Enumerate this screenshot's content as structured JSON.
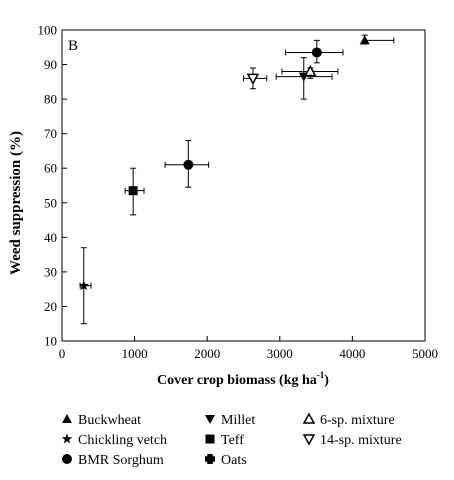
{
  "chart_data": {
    "type": "scatter",
    "panel_label": "B",
    "xlabel": "Cover crop biomass (kg ha",
    "xlabel_sup": "-1",
    "xlabel_end": ")",
    "ylabel": "Weed suppression (%)",
    "xlim": [
      0,
      5000
    ],
    "ylim": [
      10,
      100
    ],
    "xticks": [
      0,
      1000,
      2000,
      3000,
      4000,
      5000
    ],
    "yticks": [
      10,
      20,
      30,
      40,
      50,
      60,
      70,
      80,
      90,
      100
    ],
    "series": [
      {
        "name": "Buckwheat",
        "marker": "triangle-up-filled",
        "points": [
          {
            "x": 4170,
            "y": 97,
            "xerr": [
              4170,
              4570
            ],
            "yerr": [
              96,
              98.5
            ]
          }
        ]
      },
      {
        "name": "Millet",
        "marker": "triangle-down-filled",
        "points": [
          {
            "x": 3330,
            "y": 86.5,
            "xerr": [
              2950,
              3720
            ],
            "yerr": [
              80,
              92
            ]
          }
        ]
      },
      {
        "name": "6-sp. mixture",
        "marker": "triangle-up-open",
        "points": [
          {
            "x": 3420,
            "y": 88,
            "xerr": [
              3030,
              3800
            ],
            "yerr": [
              86,
              89
            ]
          }
        ]
      },
      {
        "name": "Chickling vetch",
        "marker": "star",
        "points": [
          {
            "x": 300,
            "y": 26,
            "xerr": [
              250,
              400
            ],
            "yerr": [
              15,
              37
            ]
          }
        ]
      },
      {
        "name": "Teff",
        "marker": "square-filled",
        "points": [
          {
            "x": 980,
            "y": 53.5,
            "xerr": [
              870,
              1130
            ],
            "yerr": [
              46.5,
              60
            ]
          }
        ]
      },
      {
        "name": "14-sp. mixture",
        "marker": "triangle-down-open",
        "points": [
          {
            "x": 2630,
            "y": 86,
            "xerr": [
              2500,
              2820
            ],
            "yerr": [
              83,
              89
            ]
          }
        ]
      },
      {
        "name": "BMR Sorghum",
        "marker": "circle-filled",
        "points": [
          {
            "x": 1740,
            "y": 61,
            "xerr": [
              1420,
              2020
            ],
            "yerr": [
              54.5,
              68
            ]
          },
          {
            "x": 3510,
            "y": 93.5,
            "xerr": [
              3080,
              3870
            ],
            "yerr": [
              90.5,
              97
            ]
          }
        ]
      },
      {
        "name": "Oats",
        "marker": "cross-filled",
        "points": []
      }
    ],
    "grid": false,
    "legend_position": "bottom"
  }
}
